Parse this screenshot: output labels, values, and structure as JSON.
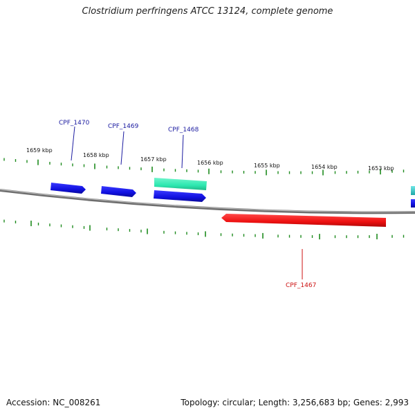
{
  "title": "Clostridium perfringens ATCC 13124, complete genome",
  "footer": {
    "accession": "Accession: NC_008261",
    "summary": "Topology: circular; Length: 3,256,683 bp; Genes: 2,993"
  },
  "colors": {
    "backbone": "#8a8a8a",
    "tick": "#1d8a1d",
    "tick_label": "#111111",
    "gene_forward": "#1010e0",
    "gene_forward_label": "#1a1aa0",
    "gene_reverse": "#ee1111",
    "gene_reverse_label": "#cc1111",
    "feature_teal": "#2de8b0",
    "feature_cyan": "#30d0d0"
  },
  "ticks": {
    "labels": [
      "1659 kbp",
      "1658 kbp",
      "1657 kbp",
      "1656 kbp",
      "1655 kbp",
      "1654 kbp",
      "1653 kbp"
    ]
  },
  "genes": [
    {
      "id": "CPF_1470",
      "label": "CPF_1470",
      "strand": "forward"
    },
    {
      "id": "CPF_1469",
      "label": "CPF_1469",
      "strand": "forward"
    },
    {
      "id": "CPF_1468",
      "label": "CPF_1468",
      "strand": "forward"
    },
    {
      "id": "CPF_1467",
      "label": "CPF_1467",
      "strand": "reverse"
    }
  ]
}
